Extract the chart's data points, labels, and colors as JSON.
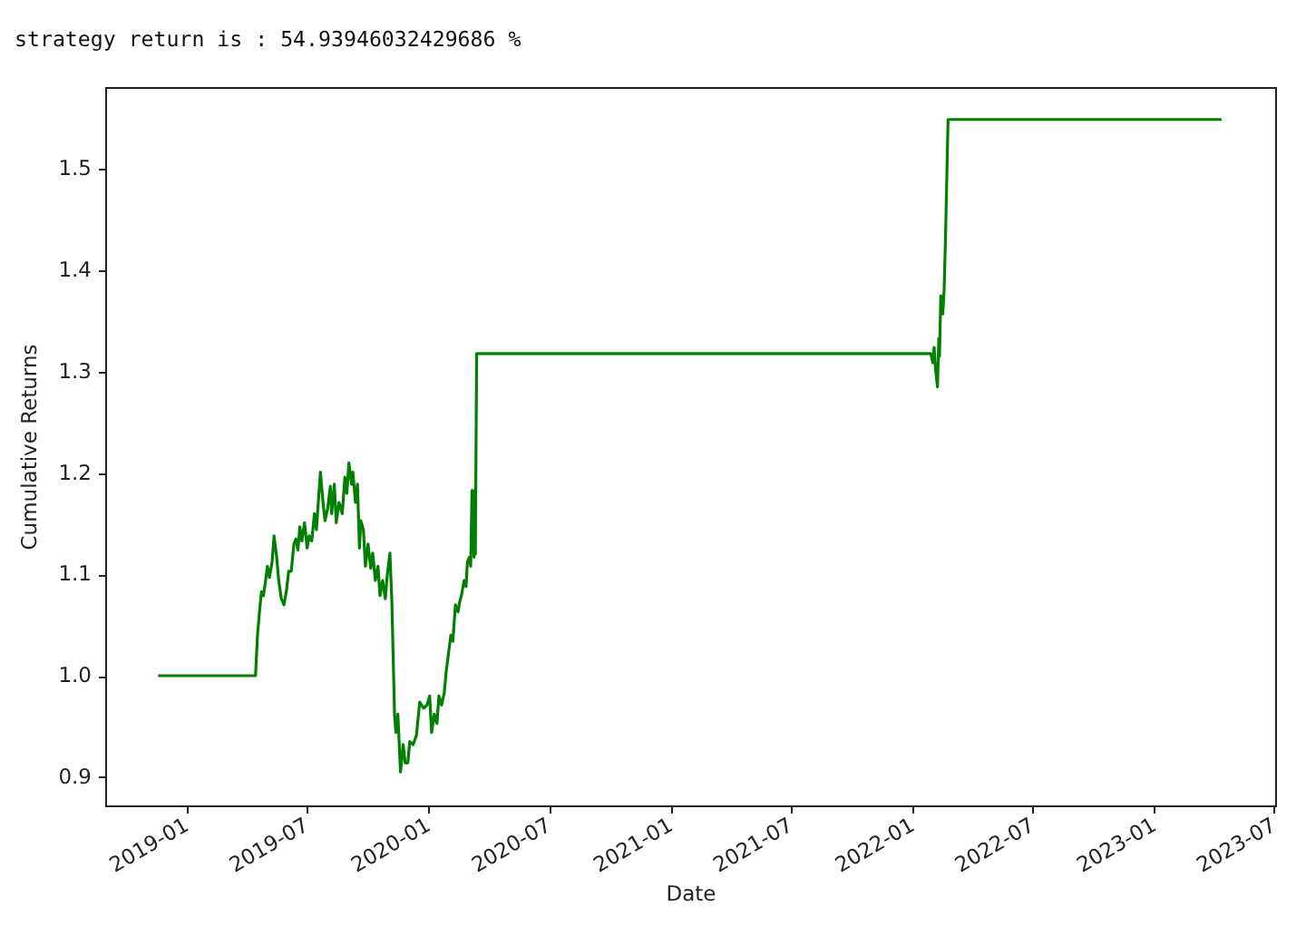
{
  "chart_data": {
    "type": "line",
    "title": "strategy return is : 54.93946032429686 %",
    "xlabel": "Date",
    "ylabel": "Cumulative Returns",
    "color": "#008000",
    "x": [
      "2018-11-19",
      "2019-04-15",
      "2019-04-18",
      "2019-04-21",
      "2019-04-24",
      "2019-04-27",
      "2019-04-29",
      "2019-05-03",
      "2019-05-06",
      "2019-05-10",
      "2019-05-13",
      "2019-05-17",
      "2019-05-20",
      "2019-05-24",
      "2019-05-28",
      "2019-06-01",
      "2019-06-04",
      "2019-06-08",
      "2019-06-12",
      "2019-06-15",
      "2019-06-18",
      "2019-06-21",
      "2019-06-24",
      "2019-06-28",
      "2019-07-02",
      "2019-07-05",
      "2019-07-09",
      "2019-07-13",
      "2019-07-16",
      "2019-07-22",
      "2019-07-26",
      "2019-07-29",
      "2019-08-02",
      "2019-08-06",
      "2019-08-08",
      "2019-08-12",
      "2019-08-15",
      "2019-08-19",
      "2019-08-24",
      "2019-08-28",
      "2019-08-31",
      "2019-09-03",
      "2019-09-07",
      "2019-09-09",
      "2019-09-13",
      "2019-09-16",
      "2019-09-19",
      "2019-09-21",
      "2019-09-25",
      "2019-09-28",
      "2019-10-02",
      "2019-10-06",
      "2019-10-09",
      "2019-10-13",
      "2019-10-17",
      "2019-10-20",
      "2019-10-24",
      "2019-10-28",
      "2019-10-31",
      "2019-11-04",
      "2019-11-07",
      "2019-11-11",
      "2019-11-13",
      "2019-11-16",
      "2019-11-20",
      "2019-11-24",
      "2019-11-27",
      "2019-12-01",
      "2019-12-04",
      "2019-12-09",
      "2019-12-14",
      "2019-12-19",
      "2019-12-25",
      "2019-12-30",
      "2020-01-03",
      "2020-01-06",
      "2020-01-10",
      "2020-01-14",
      "2020-01-17",
      "2020-01-21",
      "2020-01-25",
      "2020-01-28",
      "2020-02-04",
      "2020-02-07",
      "2020-02-11",
      "2020-02-15",
      "2020-02-17",
      "2020-02-20",
      "2020-02-24",
      "2020-02-27",
      "2020-02-29",
      "2020-03-03",
      "2020-03-05",
      "2020-03-07",
      "2020-03-10",
      "2020-03-11",
      "2020-03-12",
      "2020-03-14",
      "2022-01-29",
      "2022-02-01",
      "2022-02-03",
      "2022-02-05",
      "2022-02-08",
      "2022-02-10",
      "2022-02-11",
      "2022-02-13",
      "2022-02-16",
      "2022-02-18",
      "2022-02-20",
      "2022-02-22",
      "2022-02-24",
      "2023-04-13"
    ],
    "values": [
      1.0,
      1.0,
      1.04,
      1.063,
      1.083,
      1.079,
      1.088,
      1.108,
      1.097,
      1.112,
      1.138,
      1.117,
      1.094,
      1.076,
      1.07,
      1.085,
      1.103,
      1.103,
      1.13,
      1.135,
      1.124,
      1.147,
      1.133,
      1.151,
      1.126,
      1.138,
      1.133,
      1.16,
      1.144,
      1.201,
      1.171,
      1.153,
      1.165,
      1.187,
      1.16,
      1.189,
      1.151,
      1.171,
      1.16,
      1.196,
      1.18,
      1.21,
      1.189,
      1.201,
      1.171,
      1.189,
      1.126,
      1.153,
      1.144,
      1.108,
      1.13,
      1.106,
      1.121,
      1.094,
      1.108,
      1.079,
      1.094,
      1.076,
      1.099,
      1.121,
      1.072,
      0.962,
      0.944,
      0.962,
      0.905,
      0.932,
      0.914,
      0.914,
      0.935,
      0.932,
      0.941,
      0.974,
      0.968,
      0.971,
      0.98,
      0.944,
      0.962,
      0.953,
      0.98,
      0.971,
      0.983,
      1.004,
      1.04,
      1.034,
      1.07,
      1.063,
      1.072,
      1.079,
      1.094,
      1.088,
      1.112,
      1.117,
      1.108,
      1.183,
      1.117,
      1.183,
      1.12,
      1.318,
      1.318,
      1.309,
      1.324,
      1.303,
      1.285,
      1.333,
      1.315,
      1.375,
      1.357,
      1.381,
      1.429,
      1.489,
      1.549,
      1.549
    ],
    "xlim": [
      "2018-08-31",
      "2023-07-03"
    ],
    "xticks": [
      "2019-01",
      "2019-07",
      "2020-01",
      "2020-07",
      "2021-01",
      "2021-07",
      "2022-01",
      "2022-07",
      "2023-01",
      "2023-07"
    ],
    "ylim": [
      0.872,
      1.581
    ],
    "yticks": [
      0.9,
      {
        "value": 1,
        "label": "1.0"
      },
      1.1,
      1.2,
      1.3,
      1.4,
      1.5
    ]
  }
}
